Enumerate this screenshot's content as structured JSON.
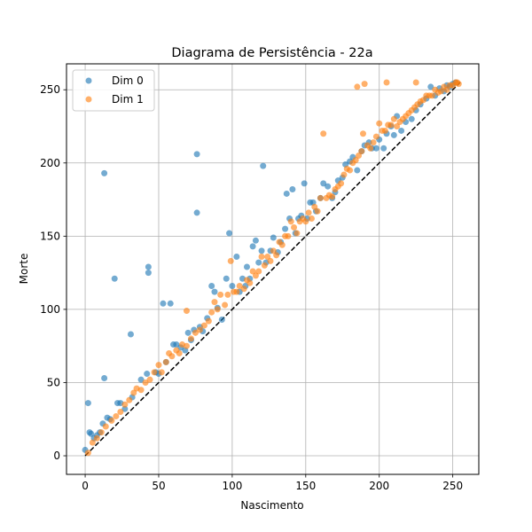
{
  "chart_data": {
    "type": "scatter",
    "title": "Diagrama de Persistência - 22a",
    "xlabel": "Nascimento",
    "ylabel": "Morte",
    "xlim": [
      -12.7,
      267.7
    ],
    "ylim": [
      -12.7,
      267.7
    ],
    "xticks": [
      0,
      50,
      100,
      150,
      200,
      250
    ],
    "yticks": [
      0,
      50,
      100,
      150,
      200,
      250
    ],
    "grid": true,
    "legend_position": "top-left",
    "diagonal": {
      "style": "dashed",
      "color": "#000000",
      "from": 0,
      "to": 255
    },
    "series": [
      {
        "name": "Dim 0",
        "color": "#1f77b4",
        "points": [
          [
            0,
            4
          ],
          [
            2,
            36
          ],
          [
            3,
            16
          ],
          [
            4,
            15
          ],
          [
            6,
            12
          ],
          [
            8,
            14
          ],
          [
            10,
            16
          ],
          [
            12,
            22
          ],
          [
            13,
            53
          ],
          [
            13,
            193
          ],
          [
            15,
            26
          ],
          [
            17,
            25
          ],
          [
            20,
            121
          ],
          [
            22,
            36
          ],
          [
            24,
            36
          ],
          [
            27,
            32
          ],
          [
            31,
            83
          ],
          [
            32,
            40
          ],
          [
            38,
            52
          ],
          [
            42,
            56
          ],
          [
            43,
            125
          ],
          [
            43,
            129
          ],
          [
            48,
            57
          ],
          [
            50,
            56
          ],
          [
            53,
            104
          ],
          [
            55,
            64
          ],
          [
            58,
            104
          ],
          [
            60,
            76
          ],
          [
            62,
            76
          ],
          [
            65,
            74
          ],
          [
            68,
            72
          ],
          [
            70,
            84
          ],
          [
            72,
            79
          ],
          [
            74,
            86
          ],
          [
            76,
            166
          ],
          [
            76,
            206
          ],
          [
            78,
            88
          ],
          [
            80,
            85
          ],
          [
            83,
            94
          ],
          [
            86,
            116
          ],
          [
            88,
            112
          ],
          [
            90,
            101
          ],
          [
            93,
            93
          ],
          [
            96,
            121
          ],
          [
            98,
            152
          ],
          [
            100,
            116
          ],
          [
            103,
            136
          ],
          [
            105,
            112
          ],
          [
            107,
            121
          ],
          [
            109,
            116
          ],
          [
            110,
            129
          ],
          [
            112,
            121
          ],
          [
            114,
            143
          ],
          [
            116,
            147
          ],
          [
            118,
            132
          ],
          [
            120,
            140
          ],
          [
            121,
            198
          ],
          [
            123,
            132
          ],
          [
            126,
            140
          ],
          [
            128,
            149
          ],
          [
            131,
            139
          ],
          [
            133,
            146
          ],
          [
            136,
            155
          ],
          [
            137,
            179
          ],
          [
            139,
            162
          ],
          [
            141,
            182
          ],
          [
            143,
            152
          ],
          [
            145,
            162
          ],
          [
            147,
            164
          ],
          [
            149,
            186
          ],
          [
            151,
            162
          ],
          [
            153,
            173
          ],
          [
            155,
            173
          ],
          [
            157,
            167
          ],
          [
            160,
            176
          ],
          [
            162,
            186
          ],
          [
            165,
            184
          ],
          [
            168,
            176
          ],
          [
            170,
            180
          ],
          [
            172,
            188
          ],
          [
            175,
            190
          ],
          [
            177,
            199
          ],
          [
            180,
            201
          ],
          [
            182,
            204
          ],
          [
            185,
            195
          ],
          [
            188,
            208
          ],
          [
            190,
            212
          ],
          [
            193,
            214
          ],
          [
            195,
            210
          ],
          [
            198,
            210
          ],
          [
            200,
            216
          ],
          [
            203,
            210
          ],
          [
            205,
            220
          ],
          [
            208,
            225
          ],
          [
            210,
            219
          ],
          [
            212,
            232
          ],
          [
            215,
            222
          ],
          [
            218,
            228
          ],
          [
            222,
            230
          ],
          [
            225,
            236
          ],
          [
            228,
            240
          ],
          [
            232,
            244
          ],
          [
            235,
            252
          ],
          [
            238,
            246
          ],
          [
            241,
            251
          ],
          [
            244,
            249
          ],
          [
            246,
            253
          ],
          [
            248,
            252
          ],
          [
            250,
            254
          ],
          [
            252,
            255
          ]
        ]
      },
      {
        "name": "Dim 1",
        "color": "#ff7f0e",
        "points": [
          [
            2,
            2
          ],
          [
            5,
            9
          ],
          [
            8,
            12
          ],
          [
            11,
            16
          ],
          [
            14,
            20
          ],
          [
            18,
            24
          ],
          [
            21,
            27
          ],
          [
            24,
            30
          ],
          [
            27,
            35
          ],
          [
            30,
            38
          ],
          [
            33,
            43
          ],
          [
            35,
            46
          ],
          [
            38,
            45
          ],
          [
            41,
            50
          ],
          [
            44,
            52
          ],
          [
            47,
            57
          ],
          [
            50,
            62
          ],
          [
            52,
            57
          ],
          [
            55,
            64
          ],
          [
            57,
            70
          ],
          [
            59,
            68
          ],
          [
            62,
            72
          ],
          [
            64,
            70
          ],
          [
            66,
            76
          ],
          [
            69,
            75
          ],
          [
            69,
            99
          ],
          [
            72,
            80
          ],
          [
            75,
            84
          ],
          [
            78,
            86
          ],
          [
            81,
            89
          ],
          [
            84,
            92
          ],
          [
            86,
            98
          ],
          [
            88,
            105
          ],
          [
            90,
            100
          ],
          [
            92,
            110
          ],
          [
            95,
            103
          ],
          [
            97,
            110
          ],
          [
            99,
            133
          ],
          [
            101,
            112
          ],
          [
            103,
            112
          ],
          [
            105,
            116
          ],
          [
            108,
            114
          ],
          [
            110,
            120
          ],
          [
            112,
            118
          ],
          [
            114,
            126
          ],
          [
            116,
            123
          ],
          [
            118,
            126
          ],
          [
            120,
            136
          ],
          [
            122,
            130
          ],
          [
            124,
            136
          ],
          [
            126,
            133
          ],
          [
            128,
            140
          ],
          [
            130,
            137
          ],
          [
            132,
            146
          ],
          [
            134,
            144
          ],
          [
            136,
            150
          ],
          [
            138,
            150
          ],
          [
            140,
            160
          ],
          [
            142,
            156
          ],
          [
            144,
            152
          ],
          [
            146,
            160
          ],
          [
            148,
            162
          ],
          [
            150,
            160
          ],
          [
            152,
            166
          ],
          [
            154,
            162
          ],
          [
            156,
            170
          ],
          [
            158,
            167
          ],
          [
            160,
            176
          ],
          [
            162,
            220
          ],
          [
            164,
            176
          ],
          [
            166,
            178
          ],
          [
            168,
            177
          ],
          [
            170,
            182
          ],
          [
            172,
            184
          ],
          [
            174,
            186
          ],
          [
            176,
            192
          ],
          [
            178,
            196
          ],
          [
            180,
            195
          ],
          [
            182,
            200
          ],
          [
            184,
            202
          ],
          [
            185,
            252
          ],
          [
            186,
            205
          ],
          [
            188,
            208
          ],
          [
            189,
            220
          ],
          [
            190,
            254
          ],
          [
            192,
            212
          ],
          [
            194,
            210
          ],
          [
            196,
            214
          ],
          [
            198,
            218
          ],
          [
            200,
            227
          ],
          [
            202,
            222
          ],
          [
            204,
            222
          ],
          [
            205,
            255
          ],
          [
            206,
            226
          ],
          [
            208,
            226
          ],
          [
            210,
            230
          ],
          [
            212,
            225
          ],
          [
            214,
            228
          ],
          [
            216,
            230
          ],
          [
            218,
            232
          ],
          [
            220,
            234
          ],
          [
            222,
            236
          ],
          [
            224,
            238
          ],
          [
            225,
            255
          ],
          [
            226,
            240
          ],
          [
            228,
            242
          ],
          [
            230,
            243
          ],
          [
            232,
            246
          ],
          [
            234,
            246
          ],
          [
            236,
            246
          ],
          [
            238,
            250
          ],
          [
            240,
            248
          ],
          [
            242,
            249
          ],
          [
            244,
            252
          ],
          [
            246,
            250
          ],
          [
            248,
            253
          ],
          [
            250,
            253
          ],
          [
            252,
            255
          ],
          [
            253,
            255
          ],
          [
            254,
            254
          ]
        ]
      }
    ]
  }
}
